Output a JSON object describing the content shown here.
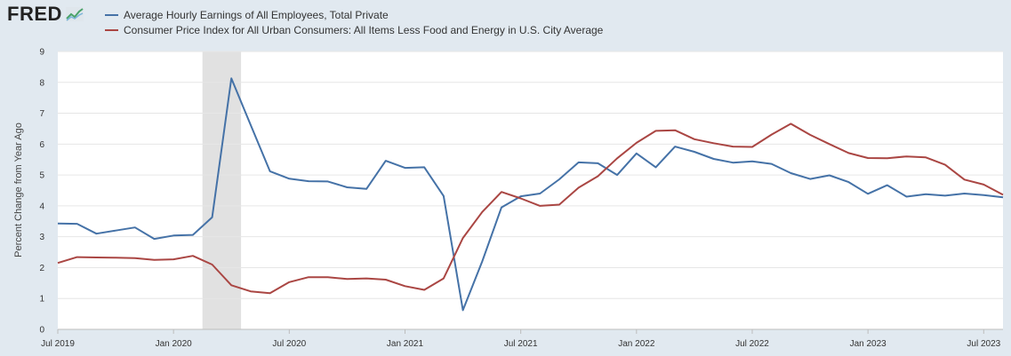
{
  "logo": {
    "text": "FRED"
  },
  "chart_data": {
    "type": "line",
    "title": "",
    "ylabel": "Percent Change from Year Ago",
    "xlabel": "",
    "ylim": [
      0,
      9
    ],
    "yticks": [
      "0",
      "1",
      "2",
      "3",
      "4",
      "5",
      "6",
      "7",
      "8",
      "9"
    ],
    "xticks": [
      {
        "label": "Jul 2019",
        "month": 0
      },
      {
        "label": "Jan 2020",
        "month": 6
      },
      {
        "label": "Jul 2020",
        "month": 12
      },
      {
        "label": "Jan 2021",
        "month": 18
      },
      {
        "label": "Jul 2021",
        "month": 24
      },
      {
        "label": "Jan 2022",
        "month": 30
      },
      {
        "label": "Jul 2022",
        "month": 36
      },
      {
        "label": "Jan 2023",
        "month": 42
      },
      {
        "label": "Jul 2023",
        "month": 48
      }
    ],
    "recession": {
      "start_month": 7.5,
      "end_month": 9.5
    },
    "grid": true,
    "legend_position": "top-left",
    "series": [
      {
        "name": "Average Hourly Earnings of All Employees, Total Private",
        "color": "#4572a7",
        "values": [
          3.43,
          3.42,
          3.1,
          3.2,
          3.3,
          2.93,
          3.04,
          3.06,
          3.63,
          8.13,
          6.62,
          5.12,
          4.88,
          4.8,
          4.79,
          4.6,
          4.55,
          5.46,
          5.23,
          5.25,
          4.32,
          0.62,
          2.2,
          3.95,
          4.31,
          4.4,
          4.86,
          5.41,
          5.38,
          5.0,
          5.7,
          5.25,
          5.92,
          5.75,
          5.52,
          5.4,
          5.44,
          5.36,
          5.06,
          4.87,
          4.99,
          4.77,
          4.39,
          4.67,
          4.3,
          4.38,
          4.33,
          4.4,
          4.35,
          4.28
        ]
      },
      {
        "name": "Consumer Price Index for All Urban Consumers: All Items Less Food and Energy in U.S. City Average",
        "color": "#aa4643",
        "values": [
          2.15,
          2.34,
          2.33,
          2.32,
          2.31,
          2.25,
          2.27,
          2.38,
          2.1,
          1.43,
          1.23,
          1.17,
          1.53,
          1.69,
          1.69,
          1.63,
          1.65,
          1.61,
          1.4,
          1.28,
          1.65,
          2.96,
          3.8,
          4.45,
          4.24,
          4.0,
          4.04,
          4.59,
          4.96,
          5.54,
          6.04,
          6.43,
          6.45,
          6.16,
          6.03,
          5.92,
          5.91,
          6.31,
          6.66,
          6.3,
          6.0,
          5.71,
          5.55,
          5.54,
          5.6,
          5.57,
          5.33,
          4.85,
          4.69,
          4.36
        ]
      }
    ]
  }
}
